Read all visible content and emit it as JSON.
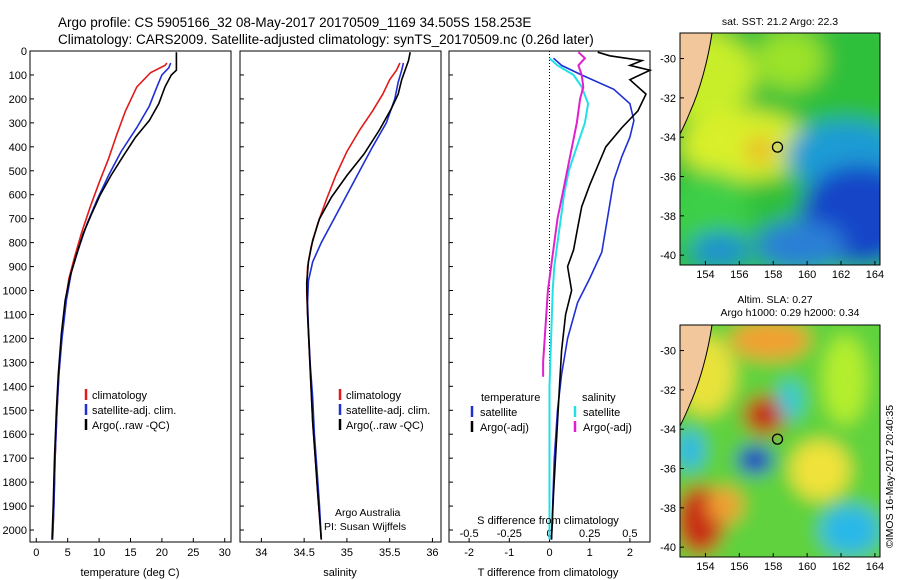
{
  "header": {
    "line1": "Argo profile: CS 5905166_32 08-May-2017 20170509_1169 34.505S 158.253E",
    "line2": "Climatology: CARS2009. Satellite-adjusted climatology: synTS_20170509.nc (0.26d later)"
  },
  "side_label": "©IMOS 16-May-2017 20:40:35",
  "colors": {
    "climatology": "#e21a1a",
    "satellite": "#1f2fd6",
    "argo": "#000000",
    "sal_sat": "#22e0e8",
    "sal_argo": "#e020d0"
  },
  "chart_data": [
    {
      "id": "temperature",
      "type": "line",
      "xlabel": "temperature (deg C)",
      "ylabel": "",
      "xlim": [
        -1,
        31
      ],
      "ylim": [
        2050,
        0
      ],
      "xticks": [
        "0",
        "5",
        "10",
        "15",
        "20",
        "25",
        "30"
      ],
      "yticks": [
        "0",
        "100",
        "200",
        "300",
        "400",
        "500",
        "600",
        "700",
        "800",
        "900",
        "1000",
        "1100",
        "1200",
        "1300",
        "1400",
        "1500",
        "1600",
        "1700",
        "1800",
        "1900",
        "2000"
      ],
      "legend": [
        "climatology",
        "satellite-adj. clim.",
        "Argo(..raw -QC)"
      ],
      "series": [
        {
          "name": "climatology",
          "color": "#e21a1a",
          "points": [
            [
              20.8,
              50
            ],
            [
              20.5,
              60
            ],
            [
              18.2,
              90
            ],
            [
              16,
              150
            ],
            [
              14.2,
              250
            ],
            [
              12.8,
              350
            ],
            [
              11.5,
              450
            ],
            [
              10,
              550
            ],
            [
              8.6,
              650
            ],
            [
              7.2,
              760
            ],
            [
              6.1,
              860
            ],
            [
              5.2,
              950
            ],
            [
              4.6,
              1050
            ],
            [
              4.0,
              1200
            ],
            [
              3.6,
              1350
            ],
            [
              3.3,
              1500
            ],
            [
              3.0,
              1700
            ],
            [
              2.8,
              1900
            ],
            [
              2.6,
              2040
            ]
          ]
        },
        {
          "name": "satellite-adj. clim.",
          "color": "#1f2fd6",
          "points": [
            [
              21.4,
              50
            ],
            [
              21.1,
              70
            ],
            [
              20,
              100
            ],
            [
              19.2,
              150
            ],
            [
              18,
              230
            ],
            [
              16,
              320
            ],
            [
              13.5,
              420
            ],
            [
              11.5,
              520
            ],
            [
              9.7,
              620
            ],
            [
              8.1,
              720
            ],
            [
              6.8,
              820
            ],
            [
              5.6,
              920
            ],
            [
              4.8,
              1040
            ],
            [
              4.1,
              1200
            ],
            [
              3.6,
              1350
            ],
            [
              3.3,
              1500
            ],
            [
              3.0,
              1700
            ],
            [
              2.8,
              1900
            ],
            [
              2.6,
              2040
            ]
          ]
        },
        {
          "name": "Argo(..raw -QC)",
          "color": "#000000",
          "points": [
            [
              22.3,
              5
            ],
            [
              22.3,
              80
            ],
            [
              21.5,
              100
            ],
            [
              20.5,
              150
            ],
            [
              19.5,
              220
            ],
            [
              18,
              290
            ],
            [
              15.8,
              360
            ],
            [
              13.8,
              440
            ],
            [
              11.9,
              520
            ],
            [
              10.2,
              600
            ],
            [
              8.8,
              680
            ],
            [
              7.5,
              760
            ],
            [
              6.4,
              850
            ],
            [
              5.4,
              940
            ],
            [
              4.6,
              1040
            ],
            [
              4.0,
              1180
            ],
            [
              3.5,
              1350
            ],
            [
              3.2,
              1500
            ],
            [
              2.9,
              1700
            ],
            [
              2.7,
              1900
            ],
            [
              2.5,
              2040
            ]
          ]
        }
      ]
    },
    {
      "id": "salinity",
      "type": "line",
      "xlabel": "salinity",
      "ylabel": "",
      "xlim": [
        33.75,
        36.1
      ],
      "ylim": [
        2050,
        0
      ],
      "xticks": [
        "34",
        "34.5",
        "35",
        "35.5",
        "36"
      ],
      "legend": [
        "climatology",
        "satellite-adj. clim.",
        "Argo(..raw -QC)"
      ],
      "annotation": [
        "Argo Australia",
        "PI: Susan Wijffels"
      ],
      "series": [
        {
          "name": "climatology",
          "color": "#e21a1a",
          "points": [
            [
              35.62,
              50
            ],
            [
              35.58,
              80
            ],
            [
              35.5,
              120
            ],
            [
              35.42,
              180
            ],
            [
              35.3,
              250
            ],
            [
              35.15,
              330
            ],
            [
              35.0,
              420
            ],
            [
              34.87,
              520
            ],
            [
              34.76,
              620
            ],
            [
              34.66,
              720
            ],
            [
              34.58,
              820
            ],
            [
              34.54,
              900
            ],
            [
              34.53,
              1000
            ],
            [
              34.54,
              1100
            ],
            [
              34.56,
              1250
            ],
            [
              34.58,
              1400
            ],
            [
              34.6,
              1550
            ],
            [
              34.63,
              1700
            ],
            [
              34.66,
              1850
            ],
            [
              34.7,
              2040
            ]
          ]
        },
        {
          "name": "satellite-adj. clim.",
          "color": "#1f2fd6",
          "points": [
            [
              35.66,
              50
            ],
            [
              35.64,
              80
            ],
            [
              35.6,
              130
            ],
            [
              35.56,
              200
            ],
            [
              35.46,
              300
            ],
            [
              35.3,
              400
            ],
            [
              35.15,
              500
            ],
            [
              35.0,
              600
            ],
            [
              34.85,
              700
            ],
            [
              34.7,
              800
            ],
            [
              34.6,
              880
            ],
            [
              34.55,
              960
            ],
            [
              34.54,
              1050
            ],
            [
              34.55,
              1150
            ],
            [
              34.57,
              1300
            ],
            [
              34.6,
              1450
            ],
            [
              34.62,
              1600
            ],
            [
              34.65,
              1750
            ],
            [
              34.68,
              1900
            ],
            [
              34.7,
              2040
            ]
          ]
        },
        {
          "name": "Argo(..raw -QC)",
          "color": "#000000",
          "points": [
            [
              35.74,
              5
            ],
            [
              35.72,
              40
            ],
            [
              35.68,
              80
            ],
            [
              35.64,
              120
            ],
            [
              35.6,
              180
            ],
            [
              35.52,
              240
            ],
            [
              35.38,
              330
            ],
            [
              35.2,
              430
            ],
            [
              35.0,
              520
            ],
            [
              34.82,
              610
            ],
            [
              34.68,
              700
            ],
            [
              34.6,
              790
            ],
            [
              34.55,
              880
            ],
            [
              34.53,
              970
            ],
            [
              34.54,
              1100
            ],
            [
              34.56,
              1250
            ],
            [
              34.58,
              1400
            ],
            [
              34.6,
              1550
            ],
            [
              34.63,
              1700
            ],
            [
              34.66,
              1850
            ],
            [
              34.7,
              2040
            ]
          ]
        }
      ]
    },
    {
      "id": "difference",
      "type": "line",
      "xlabel": "T difference from climatology",
      "xlabel2": "S difference from climatology",
      "xlim": [
        -2.5,
        2.5
      ],
      "ylim": [
        2050,
        0
      ],
      "xticks": [
        "-2",
        "-1",
        "0",
        "1",
        "2"
      ],
      "xticks2": [
        "-0.5",
        "-0.25",
        "0",
        "0.25",
        "0.5"
      ],
      "legend_titles": [
        "temperature",
        "salinity"
      ],
      "legend_left": [
        "satellite",
        "Argo(-adj)"
      ],
      "legend_right": [
        "satellite",
        "Argo(-adj)"
      ],
      "series": [
        {
          "name": "T satellite",
          "color": "#1f2fd6",
          "points": [
            [
              0.1,
              30
            ],
            [
              0.3,
              60
            ],
            [
              0.8,
              100
            ],
            [
              1.6,
              160
            ],
            [
              2.0,
              220
            ],
            [
              2.1,
              290
            ],
            [
              2.0,
              360
            ],
            [
              1.8,
              440
            ],
            [
              1.6,
              540
            ],
            [
              1.5,
              640
            ],
            [
              1.4,
              740
            ],
            [
              1.3,
              840
            ],
            [
              1.0,
              950
            ],
            [
              0.7,
              1050
            ],
            [
              0.45,
              1200
            ],
            [
              0.3,
              1350
            ],
            [
              0.2,
              1500
            ],
            [
              0.12,
              1700
            ],
            [
              0.05,
              2040
            ]
          ]
        },
        {
          "name": "T Argo(-adj)",
          "color": "#000000",
          "points": [
            [
              1.2,
              5
            ],
            [
              1.5,
              20
            ],
            [
              2.3,
              40
            ],
            [
              2.0,
              60
            ],
            [
              2.5,
              80
            ],
            [
              2.0,
              120
            ],
            [
              2.4,
              180
            ],
            [
              2.2,
              250
            ],
            [
              1.8,
              320
            ],
            [
              1.4,
              400
            ],
            [
              1.2,
              480
            ],
            [
              1.0,
              560
            ],
            [
              0.8,
              650
            ],
            [
              0.7,
              740
            ],
            [
              0.6,
              830
            ],
            [
              0.45,
              900
            ],
            [
              0.55,
              1000
            ],
            [
              0.4,
              1100
            ],
            [
              0.3,
              1250
            ],
            [
              0.25,
              1400
            ],
            [
              0.2,
              1550
            ],
            [
              0.15,
              1700
            ],
            [
              0.1,
              1850
            ],
            [
              0.05,
              2040
            ]
          ]
        },
        {
          "name": "S satellite",
          "color": "#22e0e8",
          "points": [
            [
              0.0,
              30
            ],
            [
              0.05,
              60
            ],
            [
              0.15,
              100
            ],
            [
              0.2,
              150
            ],
            [
              0.24,
              220
            ],
            [
              0.22,
              300
            ],
            [
              0.17,
              400
            ],
            [
              0.12,
              500
            ],
            [
              0.09,
              600
            ],
            [
              0.07,
              700
            ],
            [
              0.05,
              800
            ],
            [
              0.03,
              900
            ],
            [
              0.02,
              1000
            ],
            [
              0.01,
              1200
            ],
            [
              0.0,
              1400
            ],
            [
              0.0,
              1700
            ],
            [
              0.0,
              2040
            ]
          ]
        },
        {
          "name": "S Argo(-adj)",
          "color": "#e020d0",
          "points": [
            [
              0.18,
              5
            ],
            [
              0.22,
              30
            ],
            [
              0.18,
              60
            ],
            [
              0.2,
              100
            ],
            [
              0.21,
              150
            ],
            [
              0.19,
              200
            ],
            [
              0.17,
              300
            ],
            [
              0.14,
              400
            ],
            [
              0.11,
              500
            ],
            [
              0.08,
              600
            ],
            [
              0.05,
              700
            ],
            [
              0.03,
              800
            ],
            [
              0.01,
              900
            ],
            [
              -0.01,
              1000
            ],
            [
              -0.02,
              1100
            ],
            [
              -0.03,
              1200
            ],
            [
              -0.04,
              1300
            ],
            [
              -0.04,
              1360
            ]
          ]
        }
      ]
    },
    {
      "id": "sst_map",
      "type": "heatmap",
      "title": "sat. SST: 21.2  Argo: 22.3",
      "xlim": [
        152.5,
        164.3
      ],
      "ylim": [
        -40.5,
        -28.7
      ],
      "xticks": [
        "154",
        "156",
        "158",
        "160",
        "162",
        "164"
      ],
      "yticks": [
        "-30",
        "-32",
        "-34",
        "-36",
        "-38",
        "-40"
      ],
      "marker": [
        158.253,
        -34.505
      ]
    },
    {
      "id": "sla_map",
      "type": "heatmap",
      "title": "Altim. SLA: 0.27",
      "subtitle": "Argo h1000: 0.29  h2000: 0.34",
      "xlim": [
        152.5,
        164.3
      ],
      "ylim": [
        -40.5,
        -28.7
      ],
      "xticks": [
        "154",
        "156",
        "158",
        "160",
        "162",
        "164"
      ],
      "yticks": [
        "-30",
        "-32",
        "-34",
        "-36",
        "-38",
        "-40"
      ],
      "marker": [
        158.253,
        -34.505
      ]
    }
  ]
}
